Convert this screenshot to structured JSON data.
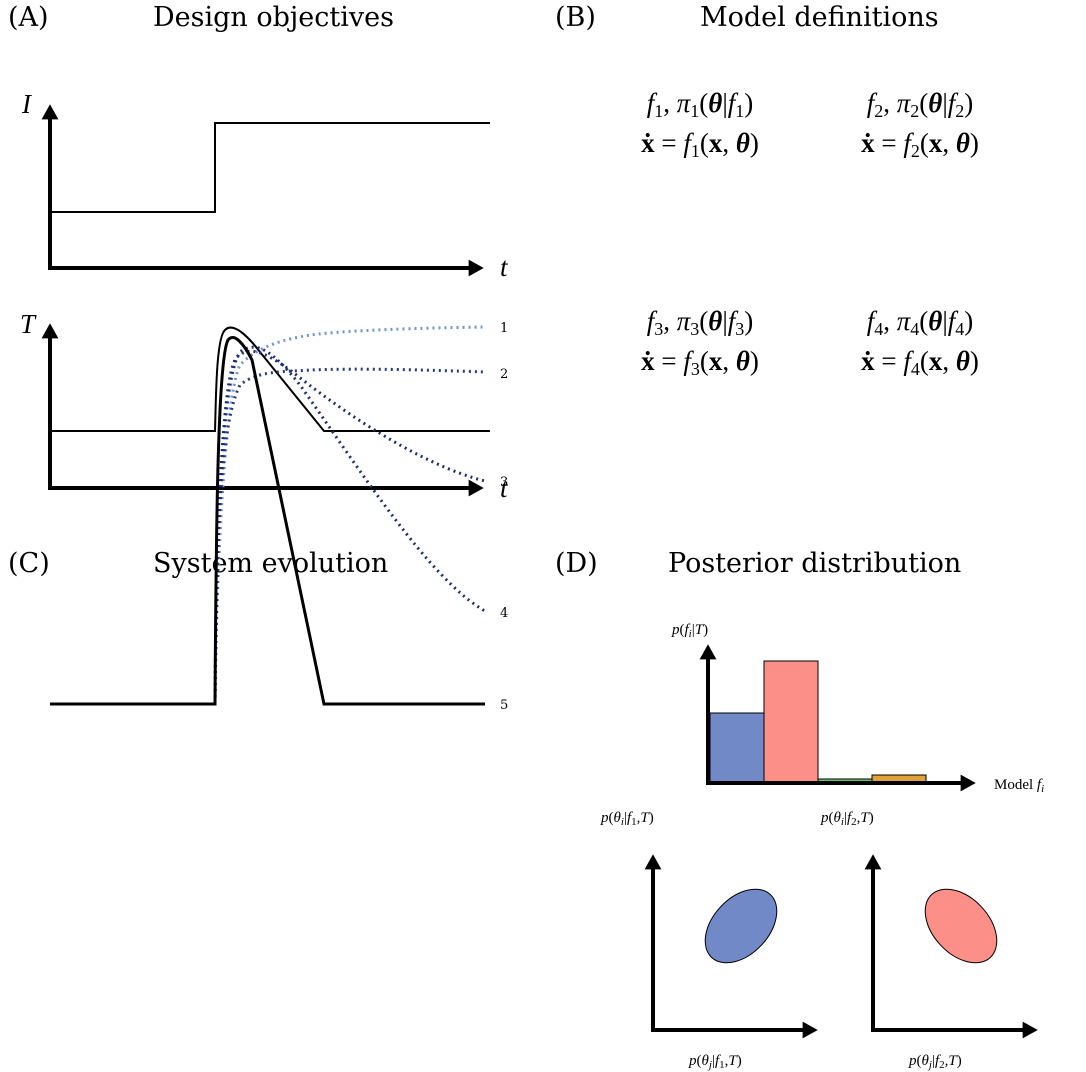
{
  "panels": {
    "A": {
      "letter": "(A)",
      "title": "Design objectives"
    },
    "B": {
      "letter": "(B)",
      "title": "Model definitions"
    },
    "C": {
      "letter": "(C)",
      "title": "System evolution"
    },
    "D": {
      "letter": "(D)",
      "title": "Posterior distribution"
    }
  },
  "design": {
    "input_axis": "I",
    "target_axis": "T",
    "time_axis": "t"
  },
  "models": [
    {
      "id": "f1",
      "sub": "1"
    },
    {
      "id": "f2",
      "sub": "2"
    },
    {
      "id": "f3",
      "sub": "3"
    },
    {
      "id": "f4",
      "sub": "4"
    }
  ],
  "evolution": {
    "curve_labels": [
      "1",
      "2",
      "3",
      "4",
      "5"
    ],
    "colors": {
      "light": "#7393d0",
      "dark": "#1f2f6e",
      "target": "#000000"
    }
  },
  "posterior": {
    "y_label_head": "p(f",
    "y_label_tail": "|T)",
    "x_label": "Model",
    "x_label_var": "f",
    "bars": [
      {
        "model": "f1",
        "value": 0.35,
        "color": "#7289c7"
      },
      {
        "model": "f2",
        "value": 0.61,
        "color": "#fc8f87"
      },
      {
        "model": "f3",
        "value": 0.02,
        "color": "#66c777"
      },
      {
        "model": "f4",
        "value": 0.04,
        "color": "#e0a23a"
      }
    ],
    "ylim": [
      0,
      0.64
    ],
    "param_plots": [
      {
        "model_sub": "1",
        "color": "#7289c7"
      },
      {
        "model_sub": "2",
        "color": "#fc8f87"
      }
    ]
  }
}
